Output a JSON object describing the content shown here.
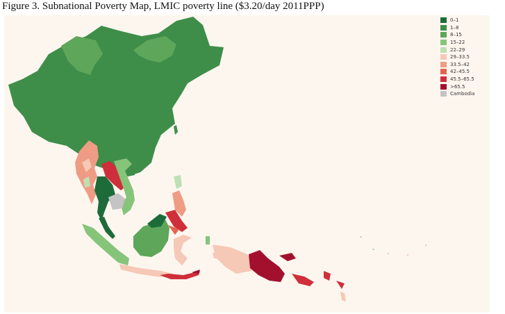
{
  "figure": {
    "caption": "Figure 3. Subnational Poverty Map, LMIC poverty line ($3.20/day 2011PPP)"
  },
  "legend": {
    "items": [
      {
        "label": "0–1",
        "color": "#1e6b3a"
      },
      {
        "label": "1–8",
        "color": "#3e8e4a"
      },
      {
        "label": "8–15",
        "color": "#5ea65a"
      },
      {
        "label": "15–22",
        "color": "#86c47a"
      },
      {
        "label": "22–29",
        "color": "#bfe0b2"
      },
      {
        "label": "29–33.5",
        "color": "#f6c8b6"
      },
      {
        "label": "33.5–42",
        "color": "#ef9c84"
      },
      {
        "label": "42–45.5",
        "color": "#e4634f"
      },
      {
        "label": "45.5–65.5",
        "color": "#cf2f3a"
      },
      {
        "label": ">65.5",
        "color": "#a3102e"
      },
      {
        "label": "Cambodia",
        "color": "#c4c4c4"
      }
    ]
  },
  "colors": {
    "panel_background": "#fdf6ef",
    "china": "#3e8e4a",
    "china_region_light": "#5ea65a",
    "nodata": "#c4c4c4"
  }
}
